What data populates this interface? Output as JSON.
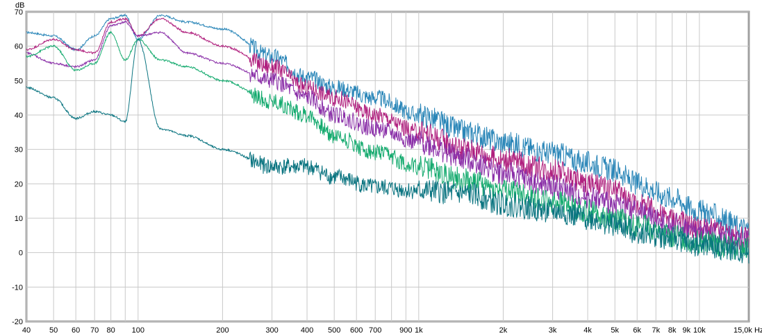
{
  "chart_data": {
    "type": "line",
    "title": "",
    "xlabel": "Hz",
    "ylabel": "dB",
    "xscale": "log",
    "xlim": [
      40,
      15000
    ],
    "ylim": [
      -20,
      70
    ],
    "grid": true,
    "y_ticks": [
      70,
      60,
      50,
      40,
      30,
      20,
      10,
      0,
      -10,
      -20
    ],
    "x_gridlines": [
      40,
      50,
      60,
      70,
      80,
      90,
      100,
      200,
      300,
      400,
      500,
      600,
      700,
      800,
      900,
      1000,
      2000,
      3000,
      4000,
      5000,
      6000,
      7000,
      8000,
      9000,
      10000
    ],
    "x_ticks": [
      {
        "v": 40,
        "label": "40"
      },
      {
        "v": 50,
        "label": "50"
      },
      {
        "v": 60,
        "label": "60"
      },
      {
        "v": 70,
        "label": "70"
      },
      {
        "v": 80,
        "label": "80"
      },
      {
        "v": 100,
        "label": "100"
      },
      {
        "v": 200,
        "label": "200"
      },
      {
        "v": 300,
        "label": "300"
      },
      {
        "v": 400,
        "label": "400"
      },
      {
        "v": 500,
        "label": "500"
      },
      {
        "v": 600,
        "label": "600"
      },
      {
        "v": 700,
        "label": "700"
      },
      {
        "v": 900,
        "label": "900"
      },
      {
        "v": 1000,
        "label": "1k"
      },
      {
        "v": 2000,
        "label": "2k"
      },
      {
        "v": 3000,
        "label": "3k"
      },
      {
        "v": 4000,
        "label": "4k"
      },
      {
        "v": 5000,
        "label": "5k"
      },
      {
        "v": 6000,
        "label": "6k"
      },
      {
        "v": 7000,
        "label": "7k"
      },
      {
        "v": 8000,
        "label": "8k"
      },
      {
        "v": 9000,
        "label": "9k"
      },
      {
        "v": 10000,
        "label": "10k"
      },
      {
        "v": 15000,
        "label": "15,0k Hz"
      }
    ],
    "x": [
      40,
      50,
      60,
      70,
      80,
      90,
      100,
      120,
      150,
      200,
      300,
      400,
      500,
      700,
      1000,
      1500,
      2000,
      3000,
      4000,
      5000,
      6000,
      8000,
      10000,
      15000
    ],
    "series": [
      {
        "name": "blue",
        "color": "#2a86b8",
        "values": [
          64,
          63,
          59,
          63,
          68,
          69,
          62,
          69,
          67,
          65,
          57,
          51,
          48,
          45,
          40,
          35,
          32,
          29,
          26,
          24,
          20,
          16,
          12,
          7
        ]
      },
      {
        "name": "magenta",
        "color": "#b0207e",
        "values": [
          59,
          62,
          59,
          58,
          67,
          68,
          63,
          68,
          64,
          60,
          54,
          48,
          45,
          40,
          35,
          30,
          27,
          24,
          20,
          18,
          14,
          10,
          7,
          4
        ]
      },
      {
        "name": "purple",
        "color": "#8a2fa8",
        "values": [
          58,
          55,
          54,
          56,
          66,
          67,
          63,
          64,
          58,
          55,
          50,
          45,
          40,
          36,
          32,
          27,
          23,
          19,
          16,
          14,
          12,
          8,
          6,
          3
        ]
      },
      {
        "name": "green",
        "color": "#14aa6e",
        "values": [
          57,
          60,
          53,
          55,
          64,
          56,
          62,
          56,
          54,
          50,
          44,
          40,
          34,
          29,
          25,
          21,
          18,
          15,
          12,
          10,
          8,
          5,
          3,
          1
        ]
      },
      {
        "name": "teal",
        "color": "#0a7480",
        "values": [
          48,
          45,
          39,
          41,
          40,
          38,
          62,
          36,
          34,
          30,
          25,
          25,
          22,
          19,
          18,
          17,
          14,
          12,
          10,
          8,
          6,
          4,
          2,
          0
        ]
      }
    ]
  }
}
